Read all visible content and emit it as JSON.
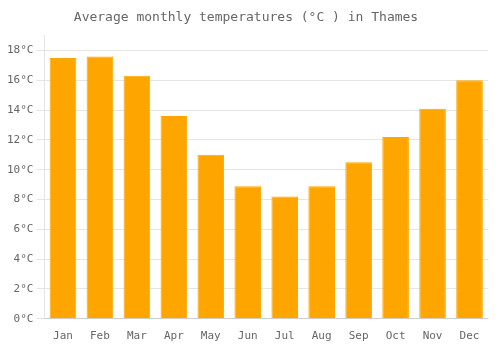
{
  "chart_data": {
    "type": "bar",
    "title": "Average monthly temperatures (°C ) in Thames",
    "categories": [
      "Jan",
      "Feb",
      "Mar",
      "Apr",
      "May",
      "Jun",
      "Jul",
      "Aug",
      "Sep",
      "Oct",
      "Nov",
      "Dec"
    ],
    "values": [
      17.5,
      17.6,
      16.3,
      13.6,
      11.0,
      8.9,
      8.2,
      8.9,
      10.5,
      12.2,
      14.1,
      16.0
    ],
    "color": "#FFA500",
    "ylim": [
      0,
      19
    ],
    "yticks": [
      {
        "value": 0,
        "label": "0°C"
      },
      {
        "value": 2,
        "label": "2°C"
      },
      {
        "value": 4,
        "label": "4°C"
      },
      {
        "value": 6,
        "label": "6°C"
      },
      {
        "value": 8,
        "label": "8°C"
      },
      {
        "value": 10,
        "label": "10°C"
      },
      {
        "value": 12,
        "label": "12°C"
      },
      {
        "value": 14,
        "label": "14°C"
      },
      {
        "value": 16,
        "label": "16°C"
      },
      {
        "value": 18,
        "label": "18°C"
      }
    ],
    "grid": true
  }
}
